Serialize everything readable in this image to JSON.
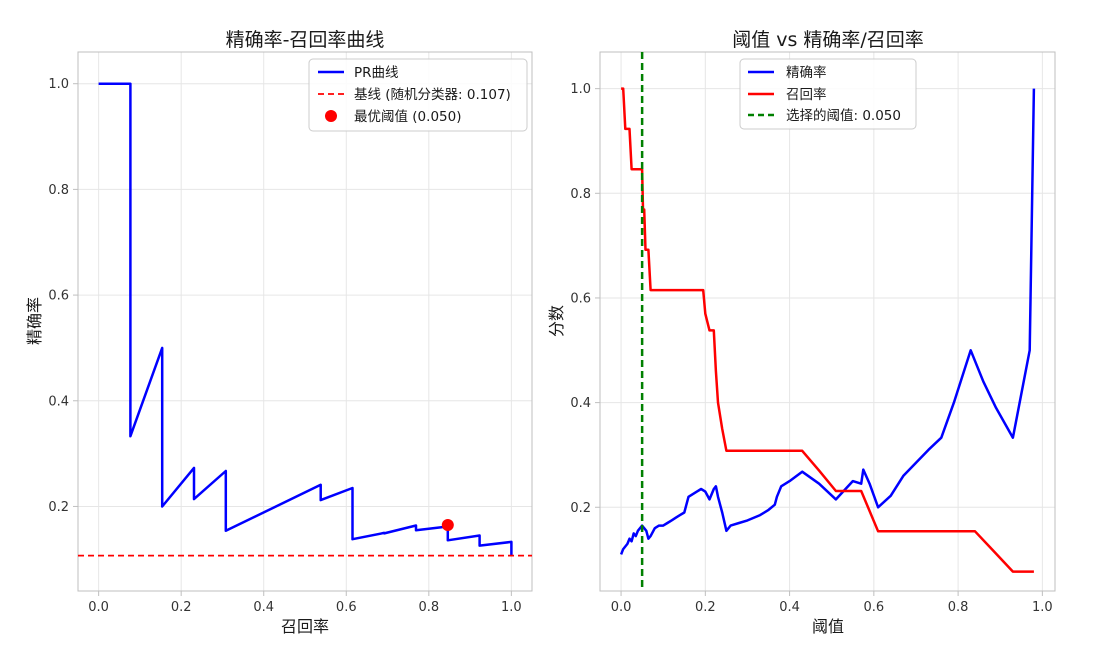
{
  "chart_data": [
    {
      "type": "line",
      "title": "精确率-召回率曲线",
      "xlabel": "召回率",
      "ylabel": "精确率",
      "xlim": [
        -0.05,
        1.05
      ],
      "ylim": [
        0.04,
        1.06
      ],
      "xticks": [
        "0.0",
        "0.2",
        "0.4",
        "0.6",
        "0.8",
        "1.0"
      ],
      "yticks": [
        "0.2",
        "0.4",
        "0.6",
        "0.8",
        "1.0"
      ],
      "grid": true,
      "legend_position": "top-right",
      "series": [
        {
          "name": "PR曲线",
          "kind": "line",
          "color": "#0000ff",
          "x": [
            0.0,
            0.077,
            0.077,
            0.154,
            0.154,
            0.231,
            0.231,
            0.308,
            0.308,
            0.538,
            0.538,
            0.615,
            0.615,
            0.692,
            0.692,
            0.769,
            0.769,
            0.846,
            0.846,
            0.923,
            0.923,
            1.0,
            1.0
          ],
          "y": [
            1.0,
            1.0,
            0.333,
            0.5,
            0.2,
            0.273,
            0.214,
            0.267,
            0.154,
            0.241,
            0.212,
            0.235,
            0.138,
            0.15,
            0.149,
            0.164,
            0.155,
            0.162,
            0.136,
            0.145,
            0.126,
            0.133,
            0.107
          ]
        },
        {
          "name": "基线 (随机分类器: 0.107)",
          "kind": "hline",
          "color": "#ff0000",
          "y": 0.107
        },
        {
          "name": "最优阈值 (0.050)",
          "kind": "point",
          "color": "#ff0000",
          "x": 0.846,
          "y": 0.165
        }
      ]
    },
    {
      "type": "line",
      "title": "阈值 vs 精确率/召回率",
      "xlabel": "阈值",
      "ylabel": "分数",
      "xlim": [
        -0.05,
        1.03
      ],
      "ylim": [
        0.04,
        1.07
      ],
      "xticks": [
        "0.0",
        "0.2",
        "0.4",
        "0.6",
        "0.8",
        "1.0"
      ],
      "yticks": [
        "0.2",
        "0.4",
        "0.6",
        "0.8",
        "1.0"
      ],
      "grid": true,
      "legend_position": "top-center",
      "series": [
        {
          "name": "精确率",
          "kind": "line",
          "color": "#0000ff",
          "x": [
            0.0,
            0.005,
            0.01,
            0.015,
            0.02,
            0.025,
            0.03,
            0.035,
            0.04,
            0.045,
            0.05,
            0.055,
            0.06,
            0.065,
            0.07,
            0.08,
            0.09,
            0.1,
            0.11,
            0.12,
            0.13,
            0.14,
            0.15,
            0.16,
            0.17,
            0.18,
            0.19,
            0.2,
            0.21,
            0.22,
            0.225,
            0.23,
            0.24,
            0.25,
            0.26,
            0.28,
            0.3,
            0.33,
            0.35,
            0.365,
            0.37,
            0.38,
            0.4,
            0.43,
            0.47,
            0.51,
            0.55,
            0.57,
            0.575,
            0.59,
            0.61,
            0.64,
            0.67,
            0.7,
            0.73,
            0.76,
            0.79,
            0.83,
            0.86,
            0.89,
            0.93,
            0.97,
            0.98
          ],
          "y": [
            0.11,
            0.12,
            0.125,
            0.13,
            0.14,
            0.135,
            0.15,
            0.145,
            0.155,
            0.16,
            0.165,
            0.16,
            0.155,
            0.14,
            0.145,
            0.16,
            0.165,
            0.165,
            0.17,
            0.175,
            0.18,
            0.185,
            0.19,
            0.22,
            0.225,
            0.23,
            0.235,
            0.23,
            0.215,
            0.235,
            0.24,
            0.22,
            0.19,
            0.155,
            0.165,
            0.17,
            0.175,
            0.185,
            0.195,
            0.205,
            0.22,
            0.24,
            0.25,
            0.268,
            0.245,
            0.215,
            0.25,
            0.245,
            0.272,
            0.245,
            0.2,
            0.222,
            0.26,
            0.285,
            0.31,
            0.333,
            0.4,
            0.5,
            0.44,
            0.39,
            0.333,
            0.5,
            1.0
          ]
        },
        {
          "name": "召回率",
          "kind": "line",
          "color": "#ff0000",
          "x": [
            0.0,
            0.005,
            0.01,
            0.02,
            0.025,
            0.03,
            0.045,
            0.05,
            0.052,
            0.055,
            0.058,
            0.06,
            0.065,
            0.07,
            0.1,
            0.15,
            0.195,
            0.2,
            0.21,
            0.215,
            0.22,
            0.225,
            0.23,
            0.24,
            0.25,
            0.3,
            0.35,
            0.43,
            0.47,
            0.51,
            0.55,
            0.57,
            0.61,
            0.62,
            0.7,
            0.8,
            0.83,
            0.84,
            0.88,
            0.93,
            0.98
          ],
          "y": [
            1.0,
            1.0,
            0.923,
            0.923,
            0.846,
            0.846,
            0.846,
            0.846,
            0.769,
            0.769,
            0.692,
            0.692,
            0.692,
            0.615,
            0.615,
            0.615,
            0.615,
            0.57,
            0.538,
            0.538,
            0.538,
            0.46,
            0.4,
            0.35,
            0.308,
            0.308,
            0.308,
            0.308,
            0.27,
            0.231,
            0.231,
            0.231,
            0.154,
            0.154,
            0.154,
            0.154,
            0.154,
            0.154,
            0.12,
            0.077,
            0.077
          ]
        },
        {
          "name": "选择的阈值: 0.050",
          "kind": "vline",
          "color": "#008000",
          "x": 0.05
        }
      ]
    }
  ]
}
